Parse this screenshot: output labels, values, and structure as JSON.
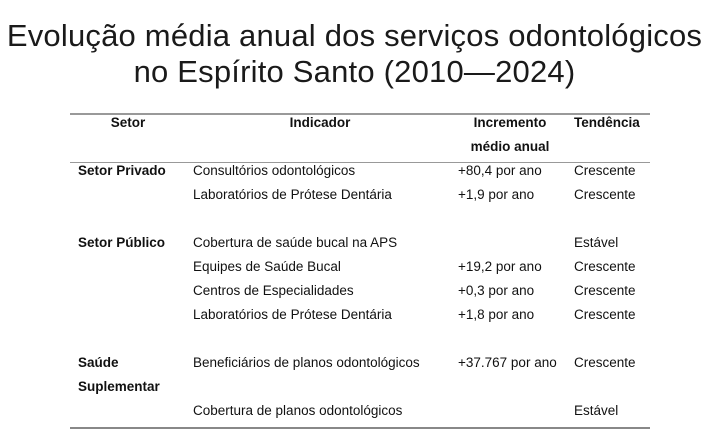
{
  "title": {
    "line1": "Evolução média anual dos serviços odontológicos",
    "line2": "no Espírito Santo (2010—2024)"
  },
  "table": {
    "headers": {
      "setor": "Setor",
      "indicador": "Indicador",
      "incremento_line1": "Incremento",
      "incremento_line2": "médio anual",
      "tendencia": "Tendência"
    },
    "rows": [
      {
        "setor": "Setor Privado",
        "indicador": "Consultórios odontológicos",
        "incremento": "+80,4 por ano",
        "tendencia": "Crescente"
      },
      {
        "setor": "",
        "indicador": "Laboratórios de Prótese Dentária",
        "incremento": "+1,9 por ano",
        "tendencia": "Crescente"
      },
      {
        "spacer": true
      },
      {
        "setor": "Setor Público",
        "indicador": "Cobertura de saúde bucal na APS",
        "incremento": "",
        "tendencia": "Estável"
      },
      {
        "setor": "",
        "indicador": "Equipes de Saúde Bucal",
        "incremento": "+19,2 por ano",
        "tendencia": "Crescente"
      },
      {
        "setor": "",
        "indicador": "Centros de Especialidades",
        "incremento": "+0,3 por ano",
        "tendencia": "Crescente"
      },
      {
        "setor": "",
        "indicador": "Laboratórios de Prótese Dentária",
        "incremento": "+1,8 por ano",
        "tendencia": "Crescente"
      },
      {
        "spacer": true
      },
      {
        "setor": "Saúde",
        "indicador": "Beneficiários de planos odontológicos",
        "incremento": "+37.767 por ano",
        "tendencia": "Crescente"
      },
      {
        "setor": "Suplementar",
        "indicador": "",
        "incremento": "",
        "tendencia": ""
      },
      {
        "setor": "",
        "indicador": "Cobertura de planos odontológicos",
        "incremento": "",
        "tendencia": "Estável"
      }
    ]
  }
}
